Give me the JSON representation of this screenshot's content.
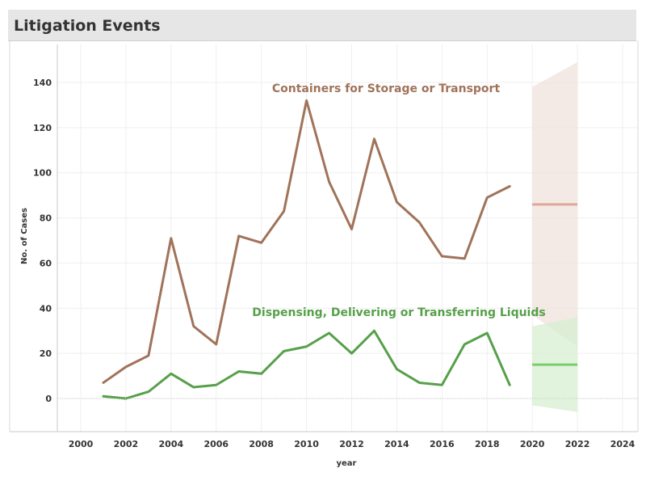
{
  "page": {
    "title": "Litigation Events"
  },
  "chart_data": {
    "type": "line",
    "xlabel": "year",
    "ylabel": "No. of Cases",
    "xlim": [
      1999,
      2025
    ],
    "ylim": [
      -14,
      157
    ],
    "x_ticks": [
      2000,
      2002,
      2004,
      2006,
      2008,
      2010,
      2012,
      2014,
      2016,
      2018,
      2020,
      2022,
      2024
    ],
    "y_ticks": [
      0,
      20,
      40,
      60,
      80,
      100,
      120,
      140
    ],
    "grid": true,
    "series": [
      {
        "name": "Containers for Storage or Transport",
        "color": "#a0735a",
        "x": [
          2001,
          2002,
          2003,
          2004,
          2005,
          2006,
          2007,
          2008,
          2009,
          2010,
          2011,
          2012,
          2013,
          2014,
          2015,
          2016,
          2017,
          2018,
          2019
        ],
        "values": [
          7,
          14,
          19,
          71,
          32,
          24,
          72,
          69,
          83,
          132,
          96,
          75,
          115,
          87,
          78,
          63,
          62,
          89,
          94
        ],
        "forecast": {
          "x": [
            2020,
            2022
          ],
          "values": [
            86,
            86
          ],
          "lower": [
            37,
            23
          ],
          "upper": [
            138,
            149
          ],
          "line_color": "#dfa898",
          "band_color": "#efe2dc"
        }
      },
      {
        "name": "Dispensing, Delivering or Transferring Liquids",
        "color": "#57a04a",
        "x": [
          2001,
          2002,
          2003,
          2004,
          2005,
          2006,
          2007,
          2008,
          2009,
          2010,
          2011,
          2012,
          2013,
          2014,
          2015,
          2016,
          2017,
          2018,
          2019
        ],
        "values": [
          1,
          0,
          3,
          11,
          5,
          6,
          12,
          11,
          21,
          23,
          29,
          20,
          30,
          13,
          7,
          6,
          24,
          29,
          6
        ],
        "forecast": {
          "x": [
            2020,
            2022
          ],
          "values": [
            15,
            15
          ],
          "lower": [
            -3,
            -6
          ],
          "upper": [
            32,
            36
          ],
          "line_color": "#7ccc6e",
          "band_color": "#d7efd0"
        }
      }
    ]
  }
}
